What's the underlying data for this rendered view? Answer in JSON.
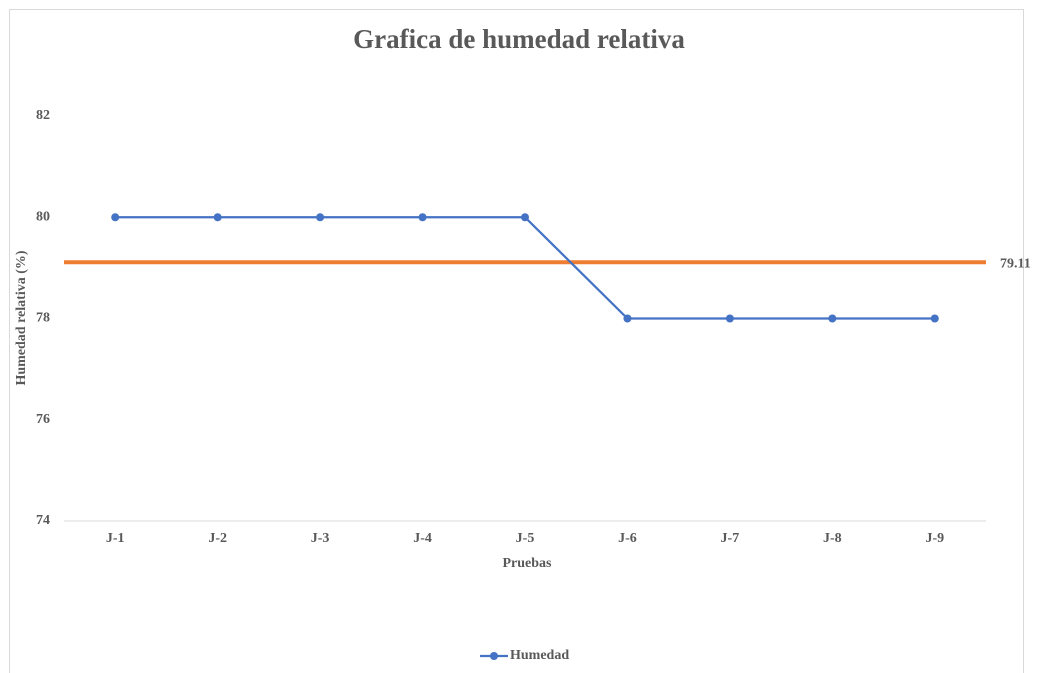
{
  "chart_data": {
    "type": "line",
    "title": "Grafica de humedad relativa",
    "x_label": "Pruebas",
    "y_label": "Humedad relativa (%)",
    "categories": [
      "J-1",
      "J-2",
      "J-3",
      "J-4",
      "J-5",
      "J-6",
      "J-7",
      "J-8",
      "J-9"
    ],
    "series": [
      {
        "name": "Humedad",
        "color": "#4472c4",
        "values": [
          80,
          80,
          80,
          80,
          80,
          78,
          78,
          78,
          78
        ]
      }
    ],
    "reference_line": {
      "value": 79.11,
      "color": "#ed7d31"
    },
    "ylim": [
      74,
      82
    ],
    "yticks": [
      74,
      76,
      78,
      80,
      82
    ],
    "grid": false,
    "legend": "bottom"
  }
}
